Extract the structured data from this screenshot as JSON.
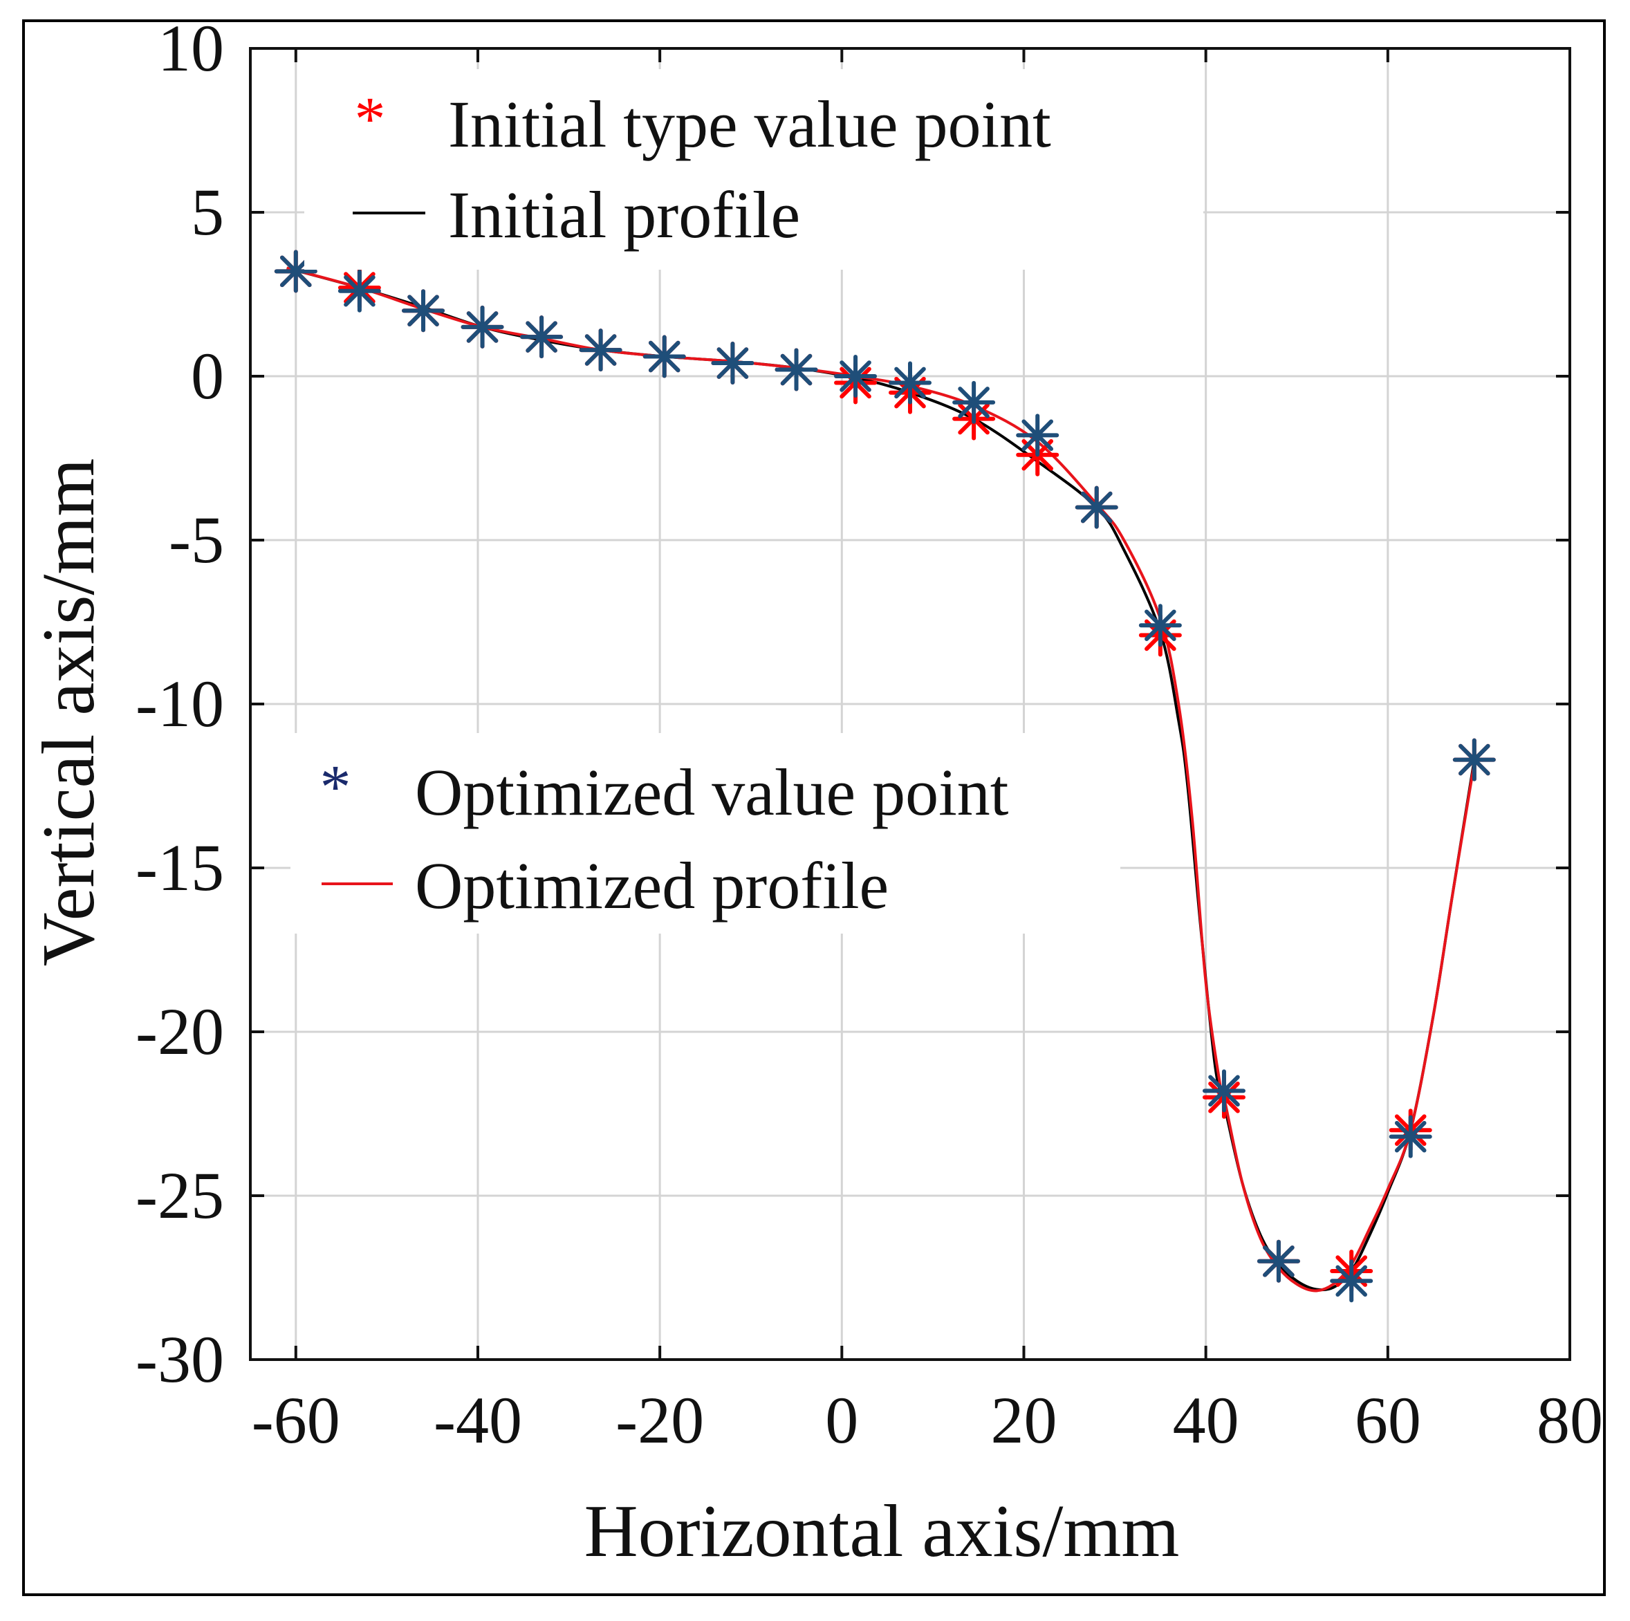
{
  "colors": {
    "initial_points": "#ff0000",
    "optimized_points": "#1f4e79",
    "initial_profile": "#000000",
    "optimized_profile": "#e8141b",
    "grid": "#d4d4d4"
  },
  "chart_data": {
    "type": "line",
    "xlabel": "Horizontal axis/mm",
    "ylabel": "Vertical axis/mm",
    "xlim": [
      -65,
      80
    ],
    "ylim": [
      -30,
      10
    ],
    "xticks": [
      -60,
      -40,
      -20,
      0,
      20,
      40,
      60,
      80
    ],
    "yticks": [
      10,
      5,
      0,
      -5,
      -10,
      -15,
      -20,
      -25,
      -30
    ],
    "xtick_labels": [
      "-60",
      "-40",
      "-20",
      "0",
      "20",
      "40",
      "60",
      "80"
    ],
    "ytick_labels": [
      "10",
      "5",
      "0",
      "-5",
      "-10",
      "-15",
      "-20",
      "-25",
      "-30"
    ],
    "grid": true,
    "legends": [
      {
        "placement": "top-left",
        "entries": [
          {
            "label": "Initial type value point",
            "marker": "*",
            "series": "initial_points"
          },
          {
            "label": "Initial profile",
            "marker": "line",
            "series": "initial_profile"
          }
        ]
      },
      {
        "placement": "middle-left",
        "entries": [
          {
            "label": "Optimized value point",
            "marker": "*",
            "series": "optimized_points"
          },
          {
            "label": "Optimized profile",
            "marker": "line",
            "series": "optimized_profile"
          }
        ]
      }
    ],
    "series": [
      {
        "name": "Initial type value point",
        "key": "initial_points",
        "kind": "markers",
        "x": [
          -60,
          -53,
          -46,
          -39.5,
          -33,
          -26.5,
          -19.5,
          -12,
          -5,
          1.5,
          7.5,
          14.5,
          21.5,
          28,
          35,
          42,
          48,
          56,
          62.5,
          69.5
        ],
        "y": [
          3.2,
          2.7,
          2.0,
          1.5,
          1.2,
          0.8,
          0.6,
          0.4,
          0.2,
          -0.2,
          -0.5,
          -1.3,
          -2.4,
          -4.0,
          -7.9,
          -22.0,
          -27.0,
          -27.3,
          -23.0,
          -11.7
        ]
      },
      {
        "name": "Optimized value point",
        "key": "optimized_points",
        "kind": "markers",
        "x": [
          -60,
          -53,
          -46,
          -39.5,
          -33,
          -26.5,
          -19.5,
          -12,
          -5,
          1.5,
          7.5,
          14.5,
          21.5,
          28,
          35,
          42,
          48,
          56,
          62.5,
          69.5
        ],
        "y": [
          3.2,
          2.6,
          2.0,
          1.5,
          1.2,
          0.8,
          0.6,
          0.4,
          0.2,
          0.0,
          -0.2,
          -0.8,
          -1.8,
          -4.0,
          -7.6,
          -21.8,
          -27.0,
          -27.6,
          -23.2,
          -11.7
        ]
      },
      {
        "name": "Initial profile",
        "key": "initial_profile",
        "kind": "line",
        "x": [
          -61,
          -53,
          -46,
          -39.5,
          -33,
          -26.5,
          -19.5,
          -12,
          -5,
          1.5,
          7.5,
          14.5,
          21.5,
          28,
          31,
          35,
          37,
          38,
          39.5,
          41,
          42,
          44,
          46,
          48,
          50,
          52,
          54,
          56,
          58,
          60,
          62.5,
          65,
          67,
          69.5
        ],
        "y": [
          3.3,
          2.7,
          2.1,
          1.5,
          1.1,
          0.8,
          0.6,
          0.45,
          0.25,
          -0.05,
          -0.5,
          -1.3,
          -2.6,
          -4.0,
          -5.3,
          -7.8,
          -10.5,
          -12.5,
          -17.0,
          -21.0,
          -22.2,
          -24.6,
          -26.2,
          -27.1,
          -27.6,
          -27.85,
          -27.8,
          -27.3,
          -26.2,
          -24.9,
          -23.0,
          -19.5,
          -16.0,
          -11.7
        ]
      },
      {
        "name": "Optimized profile",
        "key": "optimized_profile",
        "kind": "line",
        "x": [
          -61,
          -53,
          -46,
          -39.5,
          -33,
          -26.5,
          -19.5,
          -12,
          -5,
          1.5,
          7.5,
          14.5,
          21.5,
          28,
          31,
          35,
          37,
          38.5,
          40,
          41.5,
          42,
          44,
          46,
          48,
          50,
          52,
          54,
          56,
          58,
          60,
          62.5,
          65,
          67,
          69.5
        ],
        "y": [
          3.3,
          2.7,
          2.05,
          1.5,
          1.15,
          0.8,
          0.6,
          0.45,
          0.25,
          0.0,
          -0.3,
          -0.9,
          -2.0,
          -3.9,
          -5.0,
          -7.4,
          -10.0,
          -13.5,
          -18.5,
          -21.5,
          -22.0,
          -24.6,
          -26.3,
          -27.2,
          -27.7,
          -27.9,
          -27.7,
          -27.1,
          -26.0,
          -24.8,
          -23.0,
          -19.5,
          -16.0,
          -11.8
        ]
      }
    ]
  }
}
